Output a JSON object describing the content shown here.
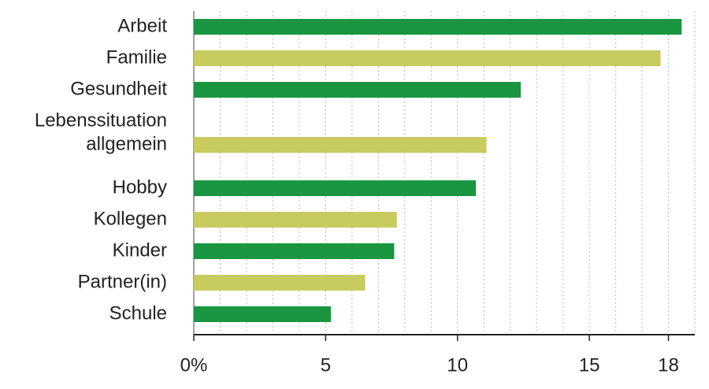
{
  "chart_data": {
    "type": "hbar",
    "categories": [
      "Arbeit",
      "Familie",
      "Gesundheit",
      [
        "Lebenssituation",
        "allgemein"
      ],
      "Hobby",
      "Kollegen",
      "Kinder",
      "Partner(in)",
      "Schule"
    ],
    "values": [
      18.5,
      17.7,
      12.4,
      11.1,
      10.7,
      7.7,
      7.6,
      6.5,
      5.2
    ],
    "colors": [
      "#1a9641",
      "#c8cb5e",
      "#1a9641",
      "#c8cb5e",
      "#1a9641",
      "#c8cb5e",
      "#1a9641",
      "#c8cb5e",
      "#1a9641"
    ],
    "xlim": [
      0,
      19
    ],
    "xticks": [
      {
        "value": 0,
        "label": "0%"
      },
      5,
      10,
      15,
      18
    ],
    "xgrid": [
      1,
      2,
      3,
      4,
      5,
      6,
      7,
      8,
      9,
      10,
      11,
      12,
      13,
      14,
      15,
      16,
      17,
      18,
      19
    ]
  }
}
